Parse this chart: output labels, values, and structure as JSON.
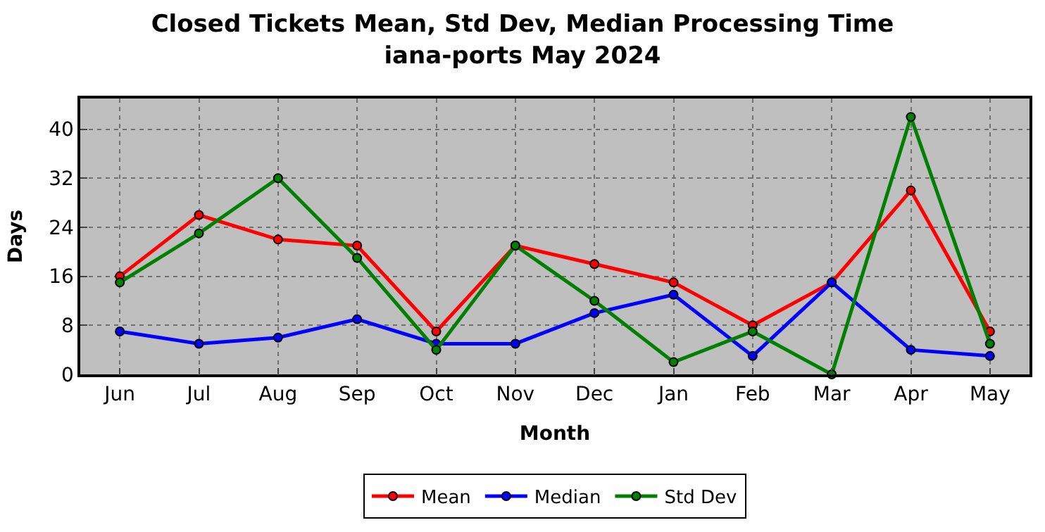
{
  "chart_data": {
    "type": "line",
    "title": "Closed Tickets Mean, Std Dev, Median Processing Time\niana-ports May 2024",
    "xlabel": "Month",
    "ylabel": "Days",
    "categories": [
      "Jun",
      "Jul",
      "Aug",
      "Sep",
      "Oct",
      "Nov",
      "Dec",
      "Jan",
      "Feb",
      "Mar",
      "Apr",
      "May"
    ],
    "series": [
      {
        "name": "Mean",
        "color": "#ff0000",
        "values": [
          16,
          26,
          22,
          21,
          7,
          21,
          18,
          15,
          8,
          15,
          30,
          7
        ]
      },
      {
        "name": "Median",
        "color": "#0000ff",
        "values": [
          7,
          5,
          6,
          9,
          5,
          5,
          10,
          13,
          3,
          15,
          4,
          3
        ]
      },
      {
        "name": "Std Dev",
        "color": "#008000",
        "values": [
          15,
          23,
          32,
          19,
          4,
          21,
          12,
          2,
          7,
          0,
          42,
          5
        ]
      }
    ],
    "ylim": [
      0,
      45
    ],
    "yticks": [
      0,
      8,
      16,
      24,
      32,
      40
    ],
    "grid": true,
    "legend": "bottom",
    "marker": "circle",
    "line_style": "solid"
  }
}
